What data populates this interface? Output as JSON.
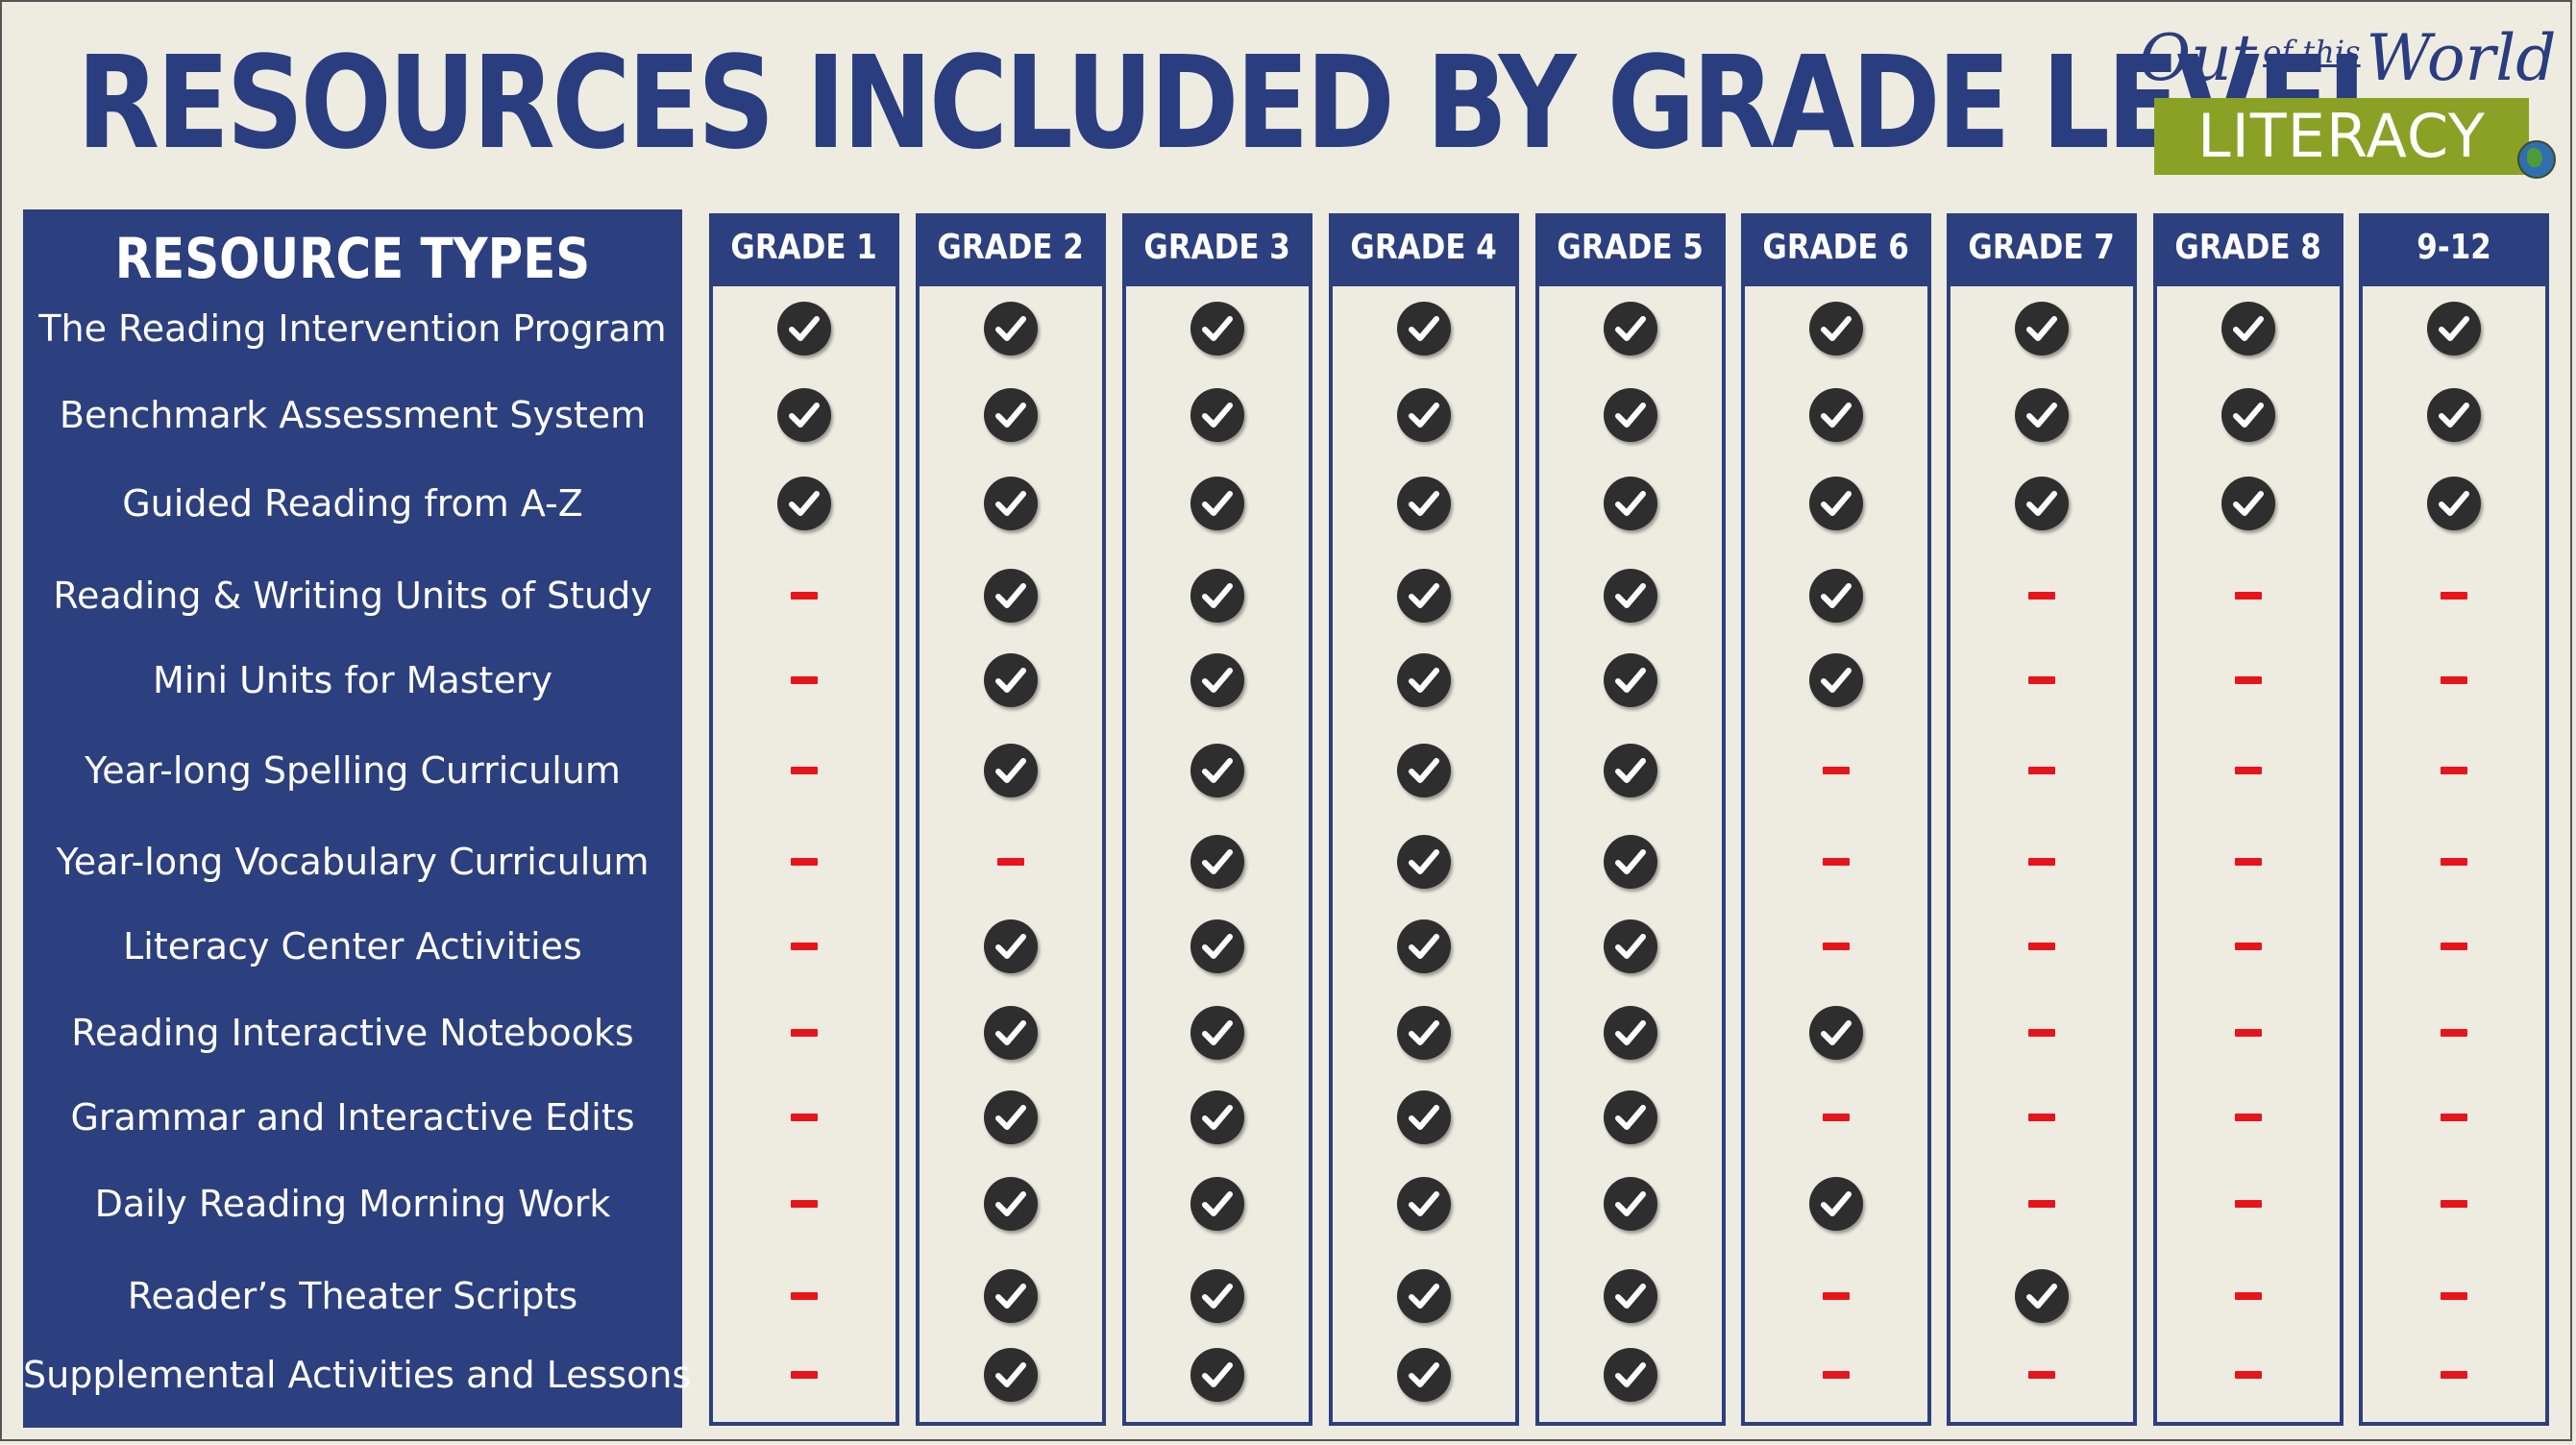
{
  "title": "RESOURCES INCLUDED BY GRADE LEVEL",
  "logo": {
    "line1_a": "Out",
    "line1_b": "of this",
    "line1_c": "World",
    "line2": "LITERACY"
  },
  "resource_types_header": "RESOURCE TYPES",
  "grades": [
    "GRADE 1",
    "GRADE 2",
    "GRADE 3",
    "GRADE 4",
    "GRADE 5",
    "GRADE 6",
    "GRADE 7",
    "GRADE 8",
    "9-12"
  ],
  "resources": [
    {
      "name": "The Reading Intervention Program",
      "included": [
        1,
        1,
        1,
        1,
        1,
        1,
        1,
        1,
        1
      ]
    },
    {
      "name": "Benchmark Assessment System",
      "included": [
        1,
        1,
        1,
        1,
        1,
        1,
        1,
        1,
        1
      ]
    },
    {
      "name": "Guided Reading from A-Z",
      "included": [
        1,
        1,
        1,
        1,
        1,
        1,
        1,
        1,
        1
      ]
    },
    {
      "name": "Reading & Writing Units of Study",
      "included": [
        0,
        1,
        1,
        1,
        1,
        1,
        0,
        0,
        0
      ]
    },
    {
      "name": "Mini Units for Mastery",
      "included": [
        0,
        1,
        1,
        1,
        1,
        1,
        0,
        0,
        0
      ]
    },
    {
      "name": "Year-long Spelling Curriculum",
      "included": [
        0,
        1,
        1,
        1,
        1,
        0,
        0,
        0,
        0
      ]
    },
    {
      "name": "Year-long Vocabulary Curriculum",
      "included": [
        0,
        0,
        1,
        1,
        1,
        0,
        0,
        0,
        0
      ]
    },
    {
      "name": "Literacy Center Activities",
      "included": [
        0,
        1,
        1,
        1,
        1,
        0,
        0,
        0,
        0
      ]
    },
    {
      "name": "Reading Interactive Notebooks",
      "included": [
        0,
        1,
        1,
        1,
        1,
        1,
        0,
        0,
        0
      ]
    },
    {
      "name": "Grammar and Interactive Edits",
      "included": [
        0,
        1,
        1,
        1,
        1,
        0,
        0,
        0,
        0
      ]
    },
    {
      "name": "Daily Reading Morning Work",
      "included": [
        0,
        1,
        1,
        1,
        1,
        1,
        0,
        0,
        0
      ]
    },
    {
      "name": "Reader’s Theater Scripts",
      "included": [
        0,
        1,
        1,
        1,
        1,
        0,
        1,
        0,
        0
      ]
    },
    {
      "name": "Supplemental Activities and Lessons",
      "included": [
        0,
        1,
        1,
        1,
        1,
        0,
        0,
        0,
        0
      ]
    }
  ],
  "colors": {
    "navy": "#2c3f7e",
    "background": "#eeebe1",
    "check": "#2e2e2e",
    "dash": "#e8141c",
    "logo_green": "#8aa126"
  },
  "icons": {
    "included": "check-circle-icon",
    "not_included": "dash-icon"
  }
}
